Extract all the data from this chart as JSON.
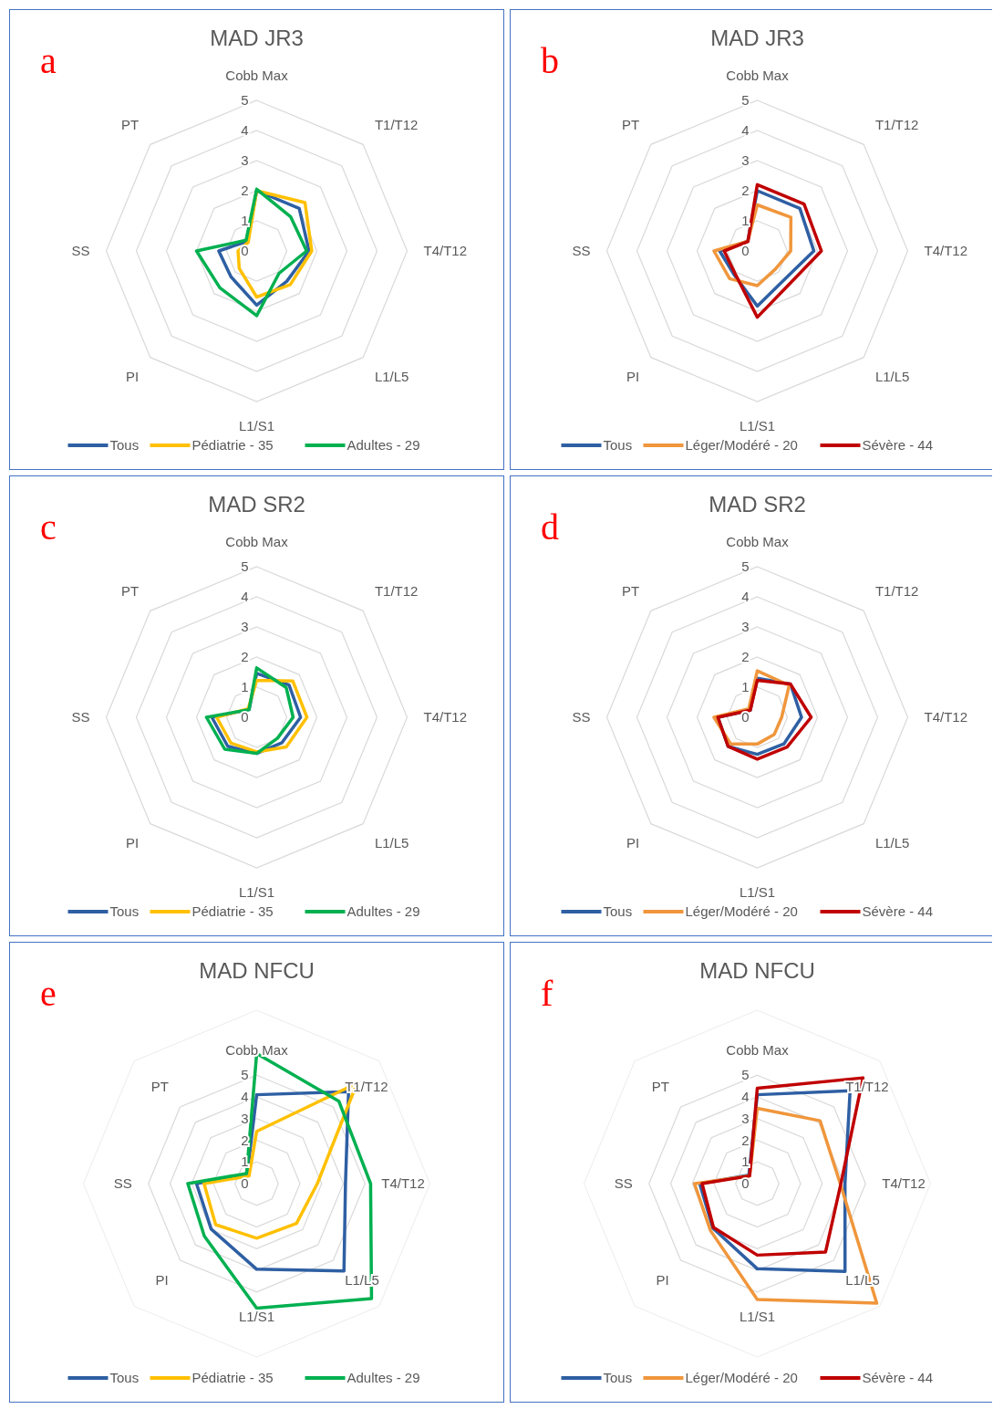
{
  "chart_data": [
    {
      "type": "radar",
      "title": "MAD JR3",
      "annotations": [
        "a"
      ],
      "categories": [
        "Cobb Max",
        "T1/T12",
        "T4/T12",
        "L1/L5",
        "L1/S1",
        "PI",
        "SS",
        "PT"
      ],
      "ylim": [
        0,
        5
      ],
      "yticks": [
        0,
        1,
        2,
        3,
        4,
        5
      ],
      "grid": true,
      "legend": "bottom",
      "series": [
        {
          "name": "Tous",
          "color": "#2e5fa3",
          "values": [
            2.0,
            2.0,
            1.74,
            1.42,
            1.8,
            1.21,
            1.26,
            0.45
          ]
        },
        {
          "name": "Pédiatrie - 35",
          "color": "#ffc000",
          "values": [
            2.0,
            2.27,
            1.83,
            1.58,
            1.53,
            0.82,
            0.62,
            0.4
          ]
        },
        {
          "name": "Adultes - 29",
          "color": "#00b050",
          "values": [
            2.05,
            1.6,
            1.66,
            1.05,
            2.15,
            1.73,
            2.0,
            0.5
          ]
        }
      ]
    },
    {
      "type": "radar",
      "title": "MAD JR3",
      "annotations": [
        "b"
      ],
      "categories": [
        "Cobb Max",
        "T1/T12",
        "T4/T12",
        "L1/L5",
        "L1/S1",
        "PI",
        "SS",
        "PT"
      ],
      "ylim": [
        0,
        5
      ],
      "yticks": [
        0,
        1,
        2,
        3,
        4,
        5
      ],
      "grid": true,
      "legend": "bottom",
      "series": [
        {
          "name": "Tous",
          "color": "#2e5fa3",
          "values": [
            2.0,
            2.0,
            1.88,
            1.31,
            1.83,
            1.1,
            1.25,
            0.45
          ]
        },
        {
          "name": "Léger/Modéré - 20",
          "color": "#f0963c",
          "values": [
            1.53,
            1.58,
            1.11,
            0.85,
            1.15,
            1.3,
            1.44,
            0.45
          ]
        },
        {
          "name": "Sévère - 44",
          "color": "#c00000",
          "values": [
            2.2,
            2.2,
            2.13,
            1.53,
            2.2,
            1.05,
            1.1,
            0.44
          ]
        }
      ]
    },
    {
      "type": "radar",
      "title": "MAD SR2",
      "annotations": [
        "c"
      ],
      "categories": [
        "Cobb Max",
        "T1/T12",
        "T4/T12",
        "L1/L5",
        "L1/S1",
        "PI",
        "SS",
        "PT"
      ],
      "ylim": [
        0,
        5
      ],
      "yticks": [
        0,
        1,
        2,
        3,
        4,
        5
      ],
      "grid": true,
      "legend": "bottom",
      "series": [
        {
          "name": "Tous",
          "color": "#2e5fa3",
          "values": [
            1.46,
            1.52,
            1.46,
            1.19,
            1.2,
            1.36,
            1.49,
            0.36
          ]
        },
        {
          "name": "Pédiatrie - 35",
          "color": "#ffc000",
          "values": [
            1.23,
            1.7,
            1.67,
            1.39,
            1.15,
            1.21,
            1.33,
            0.4
          ]
        },
        {
          "name": "Adultes - 29",
          "color": "#00b050",
          "values": [
            1.64,
            1.39,
            1.21,
            0.98,
            1.2,
            1.5,
            1.67,
            0.36
          ]
        }
      ]
    },
    {
      "type": "radar",
      "title": "MAD SR2",
      "annotations": [
        "d"
      ],
      "categories": [
        "Cobb Max",
        "T1/T12",
        "T4/T12",
        "L1/L5",
        "L1/S1",
        "PI",
        "SS",
        "PT"
      ],
      "ylim": [
        0,
        5
      ],
      "yticks": [
        0,
        1,
        2,
        3,
        4,
        5
      ],
      "grid": true,
      "legend": "bottom",
      "series": [
        {
          "name": "Tous",
          "color": "#2e5fa3",
          "values": [
            1.3,
            1.56,
            1.47,
            1.25,
            1.23,
            1.37,
            1.31,
            0.33
          ]
        },
        {
          "name": "Léger/Modéré - 20",
          "color": "#f0963c",
          "values": [
            1.54,
            1.5,
            0.81,
            0.8,
            0.89,
            1.25,
            1.44,
            0.4
          ]
        },
        {
          "name": "Sévère - 44",
          "color": "#c00000",
          "values": [
            1.23,
            1.56,
            1.79,
            1.4,
            1.39,
            1.37,
            1.31,
            0.33
          ]
        }
      ]
    },
    {
      "type": "radar",
      "title": "MAD NFCU",
      "annotations": [
        "e"
      ],
      "categories": [
        "Cobb Max",
        "T1/T12",
        "T4/T12",
        "L1/L5",
        "L1/S1",
        "PI",
        "SS",
        "PT"
      ],
      "ylim": [
        0,
        8
      ],
      "yticks": [
        0,
        1,
        2,
        3,
        4,
        5
      ],
      "grid": true,
      "legend": "bottom",
      "series": [
        {
          "name": "Tous",
          "color": "#2e5fa3",
          "values": [
            4.1,
            6.0,
            4.1,
            5.7,
            3.95,
            2.97,
            2.78,
            0.62
          ]
        },
        {
          "name": "Pédiatrie - 35",
          "color": "#ffc000",
          "values": [
            2.41,
            6.55,
            2.8,
            2.6,
            2.52,
            2.68,
            2.43,
            0.5
          ]
        },
        {
          "name": "Adultes - 29",
          "color": "#00b050",
          "values": [
            6.0,
            5.37,
            5.26,
            7.5,
            5.75,
            3.42,
            3.18,
            0.66
          ]
        }
      ]
    },
    {
      "type": "radar",
      "title": "MAD NFCU",
      "annotations": [
        "f"
      ],
      "categories": [
        "Cobb Max",
        "T1/T12",
        "T4/T12",
        "L1/L5",
        "L1/S1",
        "PI",
        "SS",
        "PT"
      ],
      "ylim": [
        0,
        8
      ],
      "yticks": [
        0,
        1,
        2,
        3,
        4,
        5
      ],
      "grid": true,
      "legend": "bottom",
      "series": [
        {
          "name": "Tous",
          "color": "#2e5fa3",
          "values": [
            4.1,
            6.06,
            4.05,
            5.73,
            3.93,
            2.9,
            2.66,
            0.55
          ]
        },
        {
          "name": "Léger/Modéré - 20",
          "color": "#f0963c",
          "values": [
            3.47,
            4.1,
            3.83,
            7.8,
            5.35,
            3.06,
            2.9,
            0.5
          ]
        },
        {
          "name": "Sévère - 44",
          "color": "#c00000",
          "values": [
            4.4,
            6.9,
            3.86,
            4.46,
            3.3,
            2.86,
            2.55,
            0.5
          ]
        }
      ]
    }
  ]
}
